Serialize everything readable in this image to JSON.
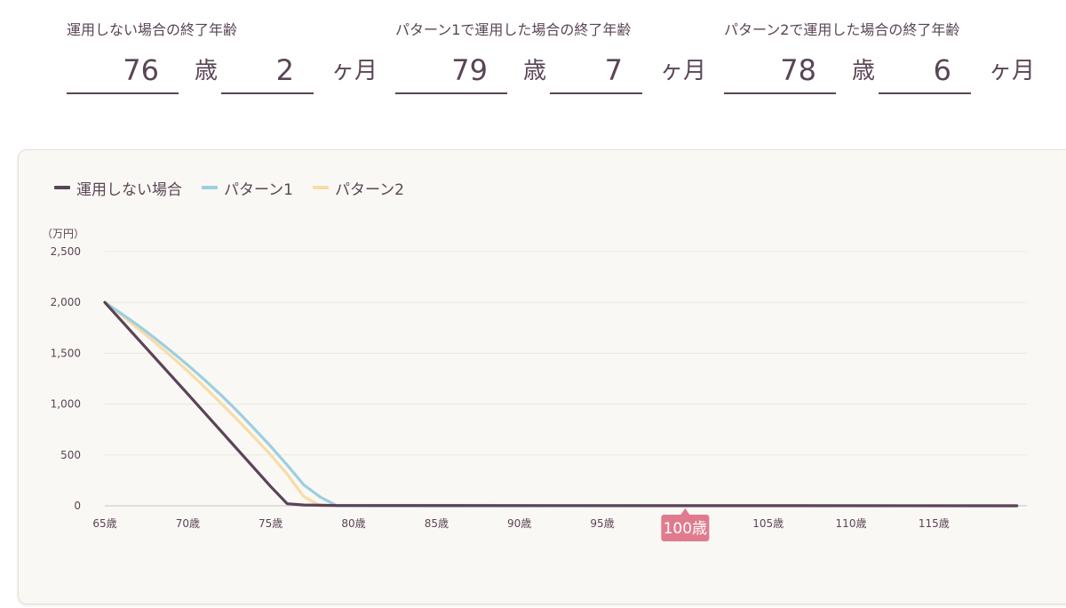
{
  "results": [
    {
      "label": "運用しない場合の終了年齢",
      "years": "76",
      "years_unit": "歳",
      "months": "2",
      "months_unit": "ヶ月"
    },
    {
      "label": "パターン1で運用した場合の終了年齢",
      "years": "79",
      "years_unit": "歳",
      "months": "7",
      "months_unit": "ヶ月"
    },
    {
      "label": "パターン2で運用した場合の終了年齢",
      "years": "78",
      "years_unit": "歳",
      "months": "6",
      "months_unit": "ヶ月"
    }
  ],
  "chart_data": {
    "type": "line",
    "title": "",
    "xlabel": "",
    "ylabel": "（万円）",
    "xlim": [
      65,
      120
    ],
    "ylim": [
      0,
      2500
    ],
    "x_ticks": [
      65,
      70,
      75,
      80,
      85,
      90,
      95,
      100,
      105,
      110,
      115
    ],
    "x_tick_labels": [
      "65歳",
      "70歳",
      "75歳",
      "80歳",
      "85歳",
      "90歳",
      "95歳",
      "100歳",
      "105歳",
      "110歳",
      "115歳"
    ],
    "y_ticks": [
      0,
      500,
      1000,
      1500,
      2000,
      2500
    ],
    "y_tick_labels": [
      "0",
      "500",
      "1,000",
      "1,500",
      "2,000",
      "2,500"
    ],
    "grid": true,
    "legend_position": "top-left",
    "highlight": {
      "x": 100,
      "label": "100歳",
      "color": "#e07b8e"
    },
    "series": [
      {
        "name": "運用しない場合",
        "color": "#5b4358",
        "points": [
          [
            65,
            2000
          ],
          [
            70,
            1100
          ],
          [
            75,
            190
          ],
          [
            76,
            20
          ],
          [
            77,
            8
          ],
          [
            78,
            5
          ],
          [
            79,
            3
          ],
          [
            120,
            0
          ]
        ]
      },
      {
        "name": "パターン1",
        "color": "#9ccfe0",
        "points": [
          [
            65,
            2000
          ],
          [
            66,
            1890
          ],
          [
            67,
            1775
          ],
          [
            68,
            1650
          ],
          [
            69,
            1520
          ],
          [
            70,
            1385
          ],
          [
            71,
            1240
          ],
          [
            72,
            1090
          ],
          [
            73,
            930
          ],
          [
            74,
            760
          ],
          [
            75,
            585
          ],
          [
            76,
            400
          ],
          [
            77,
            205
          ],
          [
            78,
            85
          ],
          [
            79,
            0
          ],
          [
            120,
            0
          ]
        ]
      },
      {
        "name": "パターン2",
        "color": "#f6dca8",
        "points": [
          [
            65,
            2000
          ],
          [
            66,
            1875
          ],
          [
            67,
            1745
          ],
          [
            68,
            1610
          ],
          [
            69,
            1470
          ],
          [
            70,
            1325
          ],
          [
            71,
            1170
          ],
          [
            72,
            1010
          ],
          [
            73,
            845
          ],
          [
            74,
            675
          ],
          [
            75,
            500
          ],
          [
            76,
            310
          ],
          [
            77,
            90
          ],
          [
            78,
            0
          ],
          [
            120,
            0
          ]
        ]
      }
    ]
  }
}
